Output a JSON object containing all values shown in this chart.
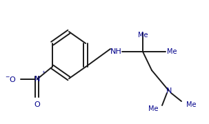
{
  "bg_color": "#ffffff",
  "line_color": "#1a1a1a",
  "text_color": "#00008b",
  "line_width": 1.4,
  "font_size": 8.0,
  "figsize": [
    3.03,
    1.8
  ],
  "dpi": 100,
  "xlim": [
    0,
    303
  ],
  "ylim": [
    0,
    180
  ]
}
